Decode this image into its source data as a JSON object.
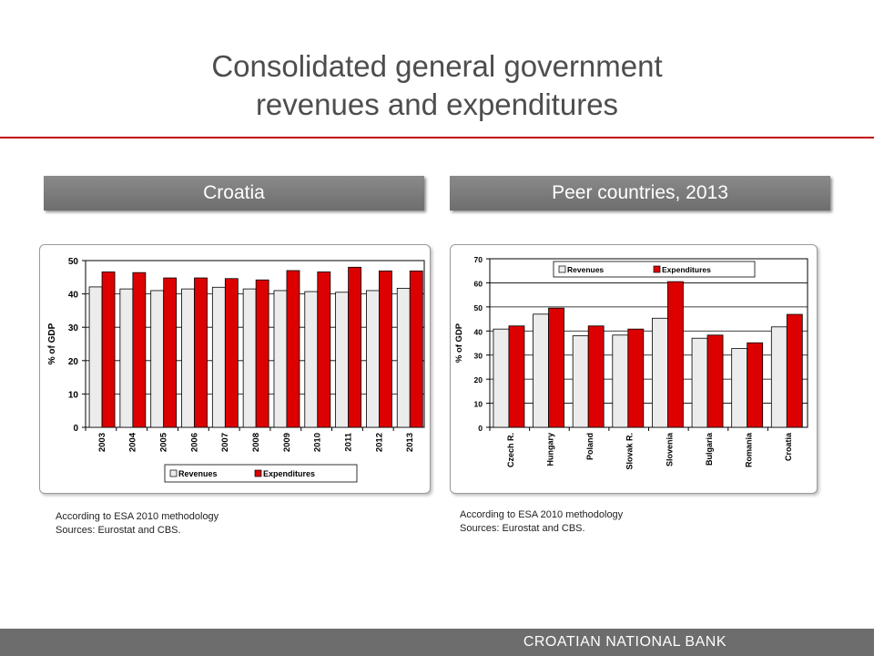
{
  "slide": {
    "title_line1": "Consolidated general government",
    "title_line2": "revenues and expenditures",
    "footer": "CROATIAN NATIONAL BANK",
    "accent_color": "#c00000"
  },
  "panels": [
    {
      "header": "Croatia",
      "note_line1": "According to ESA 2010 methodology",
      "note_line2": "Sources: Eurostat and CBS."
    },
    {
      "header": "Peer countries, 2013",
      "note_line1": "According to ESA 2010 methodology",
      "note_line2": "Sources: Eurostat and CBS."
    }
  ],
  "chart_data": [
    {
      "type": "bar",
      "categories": [
        "2003",
        "2004",
        "2005",
        "2006",
        "2007",
        "2008",
        "2009",
        "2010",
        "2011",
        "2012",
        "2013"
      ],
      "series": [
        {
          "name": "Revenues",
          "color": "#ececec",
          "values": [
            42.1,
            41.5,
            41.0,
            41.5,
            42.0,
            41.5,
            41.0,
            40.7,
            40.5,
            41.0,
            41.7
          ]
        },
        {
          "name": "Expenditures",
          "color": "#dd0000",
          "values": [
            46.6,
            46.4,
            44.8,
            44.8,
            44.6,
            44.2,
            47.0,
            46.6,
            48.0,
            46.9,
            46.9
          ]
        }
      ],
      "xlabel": "",
      "ylabel": "% of GDP",
      "ylim": [
        0,
        50
      ],
      "yticks": [
        0,
        10,
        20,
        30,
        40,
        50
      ],
      "grid": true,
      "legend": "bottom"
    },
    {
      "type": "bar",
      "categories": [
        "Czech R.",
        "Hungary",
        "Poland",
        "Slovak R.",
        "Slovenia",
        "Bulgaria",
        "Romania",
        "Croatia"
      ],
      "series": [
        {
          "name": "Revenues",
          "color": "#ececec",
          "values": [
            40.8,
            47.0,
            38.0,
            38.3,
            45.3,
            37.0,
            32.7,
            41.7
          ]
        },
        {
          "name": "Expenditures",
          "color": "#dd0000",
          "values": [
            42.1,
            49.5,
            42.1,
            40.8,
            60.5,
            38.3,
            35.1,
            46.9
          ]
        }
      ],
      "xlabel": "",
      "ylabel": "% of GDP",
      "ylim": [
        0,
        70
      ],
      "yticks": [
        0,
        10,
        20,
        30,
        40,
        50,
        60,
        70
      ],
      "grid": true,
      "legend": "top"
    }
  ]
}
